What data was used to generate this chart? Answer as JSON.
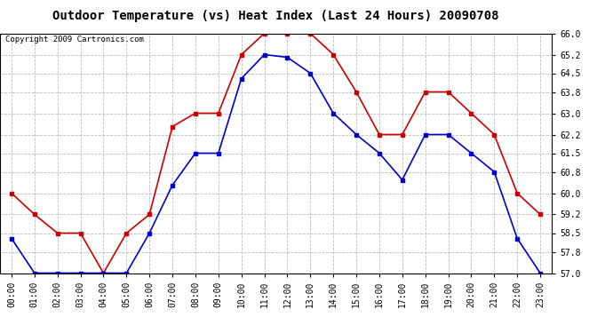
{
  "title": "Outdoor Temperature (vs) Heat Index (Last 24 Hours) 20090708",
  "copyright": "Copyright 2009 Cartronics.com",
  "hours": [
    "00:00",
    "01:00",
    "02:00",
    "03:00",
    "04:00",
    "05:00",
    "06:00",
    "07:00",
    "08:00",
    "09:00",
    "10:00",
    "11:00",
    "12:00",
    "13:00",
    "14:00",
    "15:00",
    "16:00",
    "17:00",
    "18:00",
    "19:00",
    "20:00",
    "21:00",
    "22:00",
    "23:00"
  ],
  "temp_blue": [
    58.3,
    57.0,
    57.0,
    57.0,
    57.0,
    57.0,
    58.5,
    60.3,
    61.5,
    61.5,
    64.3,
    65.2,
    65.1,
    64.5,
    63.0,
    62.2,
    61.5,
    60.5,
    62.2,
    62.2,
    61.5,
    60.8,
    58.3,
    57.0
  ],
  "heat_red": [
    60.0,
    59.2,
    58.5,
    58.5,
    57.0,
    58.5,
    59.2,
    62.5,
    63.0,
    63.0,
    65.2,
    66.0,
    66.0,
    66.0,
    65.2,
    63.8,
    62.2,
    62.2,
    63.8,
    63.8,
    63.0,
    62.2,
    60.0,
    59.2
  ],
  "ylim_min": 57.0,
  "ylim_max": 66.0,
  "yticks": [
    57.0,
    57.8,
    58.5,
    59.2,
    60.0,
    60.8,
    61.5,
    62.2,
    63.0,
    63.8,
    64.5,
    65.2,
    66.0
  ],
  "bg_color": "#ffffff",
  "plot_bg_color": "#ffffff",
  "grid_color": "#bbbbbb",
  "blue_color": "#0000cc",
  "red_color": "#cc0000",
  "title_fontsize": 10,
  "tick_fontsize": 7,
  "copyright_fontsize": 6.5
}
